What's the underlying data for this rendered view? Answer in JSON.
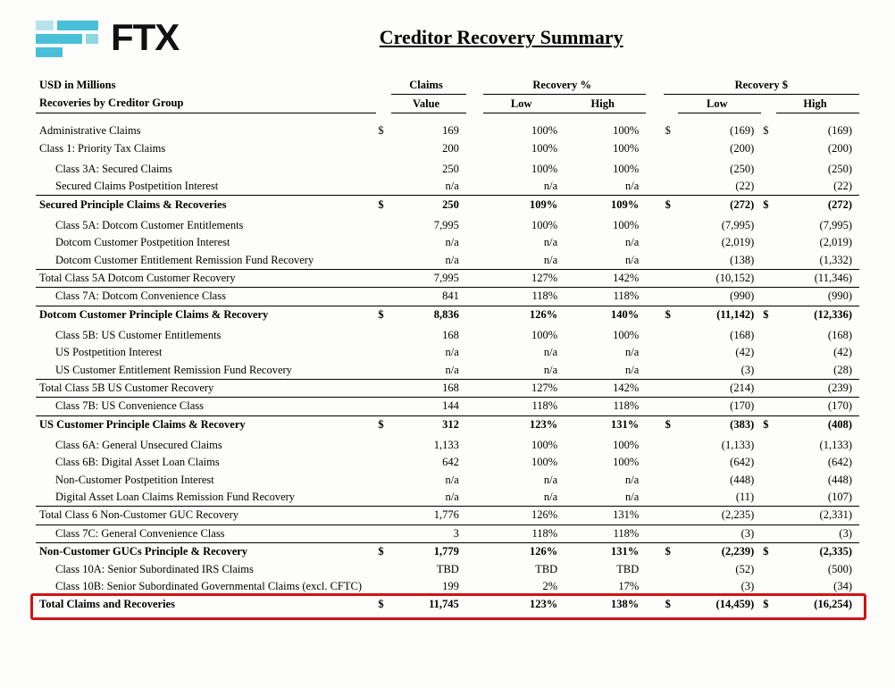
{
  "page": {
    "title": "Creditor Recovery Summary",
    "brand": "FTX",
    "unit_label": "USD in Millions",
    "section_label": "Recoveries by Creditor Group",
    "headers": {
      "claims": "Claims",
      "recovery_pct": "Recovery %",
      "recovery_usd": "Recovery $",
      "value": "Value",
      "low": "Low",
      "high": "High"
    }
  },
  "style": {
    "brand_color": "#49c0d7",
    "highlight_border_color": "#d11313",
    "font_family": "Times New Roman",
    "body_font_size_pt": 12.5
  },
  "currency_symbol": "$",
  "rows": [
    {
      "label": "Administrative Claims",
      "claim": "169",
      "pct_low": "100%",
      "pct_high": "100%",
      "rec_low": "(169)",
      "rec_high": "(169)",
      "sym": true
    },
    {
      "label": "Class 1: Priority Tax Claims",
      "claim": "200",
      "pct_low": "100%",
      "pct_high": "100%",
      "rec_low": "(200)",
      "rec_high": "(200)",
      "pad": true
    },
    {
      "label": "Class 3A: Secured Claims",
      "claim": "250",
      "pct_low": "100%",
      "pct_high": "100%",
      "rec_low": "(250)",
      "rec_high": "(250)",
      "sub": true
    },
    {
      "label": "Secured Claims Postpetition Interest",
      "claim": "n/a",
      "pct_low": "n/a",
      "pct_high": "n/a",
      "rec_low": "(22)",
      "rec_high": "(22)",
      "sub": true
    },
    {
      "label": "Secured Principle Claims & Recoveries",
      "claim": "250",
      "pct_low": "109%",
      "pct_high": "109%",
      "rec_low": "(272)",
      "rec_high": "(272)",
      "bold": true,
      "sect": "thick",
      "sym": true,
      "pad": true
    },
    {
      "label": "Class 5A: Dotcom Customer Entitlements",
      "claim": "7,995",
      "pct_low": "100%",
      "pct_high": "100%",
      "rec_low": "(7,995)",
      "rec_high": "(7,995)",
      "sub": true
    },
    {
      "label": "Dotcom Customer Postpetition Interest",
      "claim": "n/a",
      "pct_low": "n/a",
      "pct_high": "n/a",
      "rec_low": "(2,019)",
      "rec_high": "(2,019)",
      "sub": true
    },
    {
      "label": "Dotcom Customer Entitlement Remission Fund Recovery",
      "claim": "n/a",
      "pct_low": "n/a",
      "pct_high": "n/a",
      "rec_low": "(138)",
      "rec_high": "(1,332)",
      "sub": true
    },
    {
      "label": "Total Class 5A Dotcom Customer Recovery",
      "claim": "7,995",
      "pct_low": "127%",
      "pct_high": "142%",
      "rec_low": "(10,152)",
      "rec_high": "(11,346)",
      "sect": "thin"
    },
    {
      "label": "Class 7A: Dotcom Convenience Class",
      "claim": "841",
      "pct_low": "118%",
      "pct_high": "118%",
      "rec_low": "(990)",
      "rec_high": "(990)",
      "sub": true,
      "sect": "thin"
    },
    {
      "label": "Dotcom Customer Principle Claims & Recovery",
      "claim": "8,836",
      "pct_low": "126%",
      "pct_high": "140%",
      "rec_low": "(11,142)",
      "rec_high": "(12,336)",
      "bold": true,
      "sect": "thick",
      "sym": true,
      "pad": true
    },
    {
      "label": "Class 5B: US Customer Entitlements",
      "claim": "168",
      "pct_low": "100%",
      "pct_high": "100%",
      "rec_low": "(168)",
      "rec_high": "(168)",
      "sub": true
    },
    {
      "label": "US Postpetition Interest",
      "claim": "n/a",
      "pct_low": "n/a",
      "pct_high": "n/a",
      "rec_low": "(42)",
      "rec_high": "(42)",
      "sub": true
    },
    {
      "label": "US Customer Entitlement Remission Fund Recovery",
      "claim": "n/a",
      "pct_low": "n/a",
      "pct_high": "n/a",
      "rec_low": "(3)",
      "rec_high": "(28)",
      "sub": true
    },
    {
      "label": "Total Class 5B US Customer Recovery",
      "claim": "168",
      "pct_low": "127%",
      "pct_high": "142%",
      "rec_low": "(214)",
      "rec_high": "(239)",
      "sect": "thin"
    },
    {
      "label": "Class 7B: US Convenience Class",
      "claim": "144",
      "pct_low": "118%",
      "pct_high": "118%",
      "rec_low": "(170)",
      "rec_high": "(170)",
      "sub": true,
      "sect": "thin"
    },
    {
      "label": "US Customer Principle Claims & Recovery",
      "claim": "312",
      "pct_low": "123%",
      "pct_high": "131%",
      "rec_low": "(383)",
      "rec_high": "(408)",
      "bold": true,
      "sect": "thick",
      "sym": true,
      "pad": true
    },
    {
      "label": "Class 6A: General Unsecured Claims",
      "claim": "1,133",
      "pct_low": "100%",
      "pct_high": "100%",
      "rec_low": "(1,133)",
      "rec_high": "(1,133)",
      "sub": true
    },
    {
      "label": "Class 6B: Digital Asset Loan Claims",
      "claim": "642",
      "pct_low": "100%",
      "pct_high": "100%",
      "rec_low": "(642)",
      "rec_high": "(642)",
      "sub": true
    },
    {
      "label": "Non-Customer Postpetition Interest",
      "claim": "n/a",
      "pct_low": "n/a",
      "pct_high": "n/a",
      "rec_low": "(448)",
      "rec_high": "(448)",
      "sub": true
    },
    {
      "label": "Digital Asset Loan Claims Remission Fund Recovery",
      "claim": "n/a",
      "pct_low": "n/a",
      "pct_high": "n/a",
      "rec_low": "(11)",
      "rec_high": "(107)",
      "sub": true
    },
    {
      "label": "Total Class 6 Non-Customer GUC Recovery",
      "claim": "1,776",
      "pct_low": "126%",
      "pct_high": "131%",
      "rec_low": "(2,235)",
      "rec_high": "(2,331)",
      "sect": "thin"
    },
    {
      "label": "Class 7C: General Convenience Class",
      "claim": "3",
      "pct_low": "118%",
      "pct_high": "118%",
      "rec_low": "(3)",
      "rec_high": "(3)",
      "sub": true,
      "sect": "thin"
    },
    {
      "label": "Non-Customer GUCs Principle & Recovery",
      "claim": "1,779",
      "pct_low": "126%",
      "pct_high": "131%",
      "rec_low": "(2,239)",
      "rec_high": "(2,335)",
      "bold": true,
      "sect": "thick",
      "sym": true
    },
    {
      "label": "Class 10A: Senior Subordinated IRS Claims",
      "claim": "TBD",
      "pct_low": "TBD",
      "pct_high": "TBD",
      "rec_low": "(52)",
      "rec_high": "(500)",
      "sub": true
    },
    {
      "label": "Class 10B: Senior Subordinated Governmental Claims (excl. CFTC)",
      "claim": "199",
      "pct_low": "2%",
      "pct_high": "17%",
      "rec_low": "(3)",
      "rec_high": "(34)",
      "sub": true
    },
    {
      "label": "Total Claims and Recoveries",
      "claim": "11,745",
      "pct_low": "123%",
      "pct_high": "138%",
      "rec_low": "(14,459)",
      "rec_high": "(16,254)",
      "bold": true,
      "sect": "thick",
      "sym": true,
      "highlight": true
    }
  ]
}
